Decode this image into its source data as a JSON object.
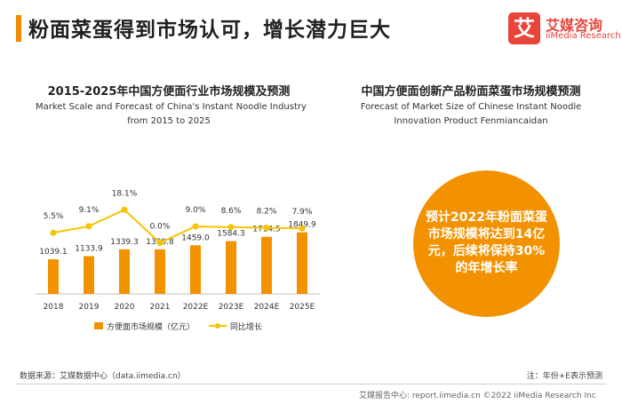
{
  "header": {
    "title": "粉面菜蛋得到市场认可，增长潜力巨大",
    "logo_mark": "艾",
    "logo_cn": "艾媒咨询",
    "logo_en": "iiMedia Research",
    "accent_color": "#f08a00",
    "logo_color": "#e8443a"
  },
  "left_panel": {
    "title": "2015-2025年中国方便面行业市场规模及预测",
    "subtitle_line1": "Market Scale and Forecast of China's Instant Noodle Industry",
    "subtitle_line2": "from 2015 to 2025"
  },
  "chart_data": {
    "type": "bar",
    "categories": [
      "2018",
      "2019",
      "2020",
      "2021",
      "2022E",
      "2023E",
      "2024E",
      "2025E"
    ],
    "series": [
      {
        "name": "方便面市场规模（亿元）",
        "type": "bar",
        "color": "#f39200",
        "values": [
          1039.1,
          1133.9,
          1339.3,
          1338.8,
          1459.0,
          1584.3,
          1714.5,
          1849.9
        ],
        "labels": [
          "1039.1",
          "1133.9",
          "1339.3",
          "1338.8",
          "1459.0",
          "1584.3",
          "1714.5",
          "1849.9"
        ]
      },
      {
        "name": "同比增长",
        "type": "line",
        "color": "#f5c400",
        "values": [
          5.5,
          9.1,
          18.1,
          0.0,
          9.0,
          8.6,
          8.2,
          7.9
        ],
        "labels": [
          "5.5%",
          "9.1%",
          "18.1%",
          "0.0%",
          "9.0%",
          "8.6%",
          "8.2%",
          "7.9%"
        ]
      }
    ],
    "bar_ylim": [
      0,
      4000
    ],
    "line_ylim": [
      -28,
      45
    ],
    "legend_position": "bottom",
    "grid": false
  },
  "right_panel": {
    "title": "中国方便面创新产品粉面菜蛋市场规模预测",
    "subtitle_line1": "Forecast of Market Size of Chinese Instant Noodle",
    "subtitle_line2": "Innovation Product Fenmiancaidan",
    "bubble_text": "预计2022年粉面菜蛋市场规模将达到14亿元，后续将保持30%的年增长率",
    "bubble_color": "#f39200"
  },
  "footer": {
    "source": "数据来源：艾媒数据中心（data.iimedia.cn）",
    "note": "注：年份+E表示预测",
    "copyright": "艾媒报告中心: report.iimedia.cn ©2022 iiMedia Research Inc"
  }
}
